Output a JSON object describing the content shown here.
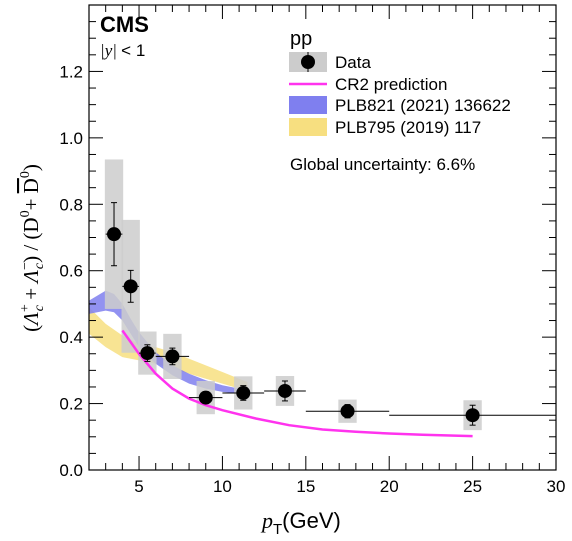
{
  "chart_data": {
    "type": "scatter",
    "experiment": "CMS",
    "rapidity_cut": {
      "var": "y",
      "cut": "< 1"
    },
    "legend_header": "pp",
    "global_uncertainty": "Global uncertainty: 6.6%",
    "xlabel": {
      "var": "p",
      "sub": "T",
      "unit": "(GeV)"
    },
    "ylabel": {
      "open": "(",
      "lam": "Λ",
      "c": "c",
      "plus_sup": "+",
      "mid": " + ",
      "minus_sup": "−",
      "close": ") / (D",
      "zero": "0",
      "plus2": "+ ",
      "dbar": "D",
      "zero2": "0",
      "end": ")"
    },
    "xlim": [
      2,
      30
    ],
    "ylim": [
      0,
      1.4
    ],
    "xticks": [
      5,
      10,
      15,
      20,
      25,
      30
    ],
    "yticks": [
      0.0,
      0.2,
      0.4,
      0.6,
      0.8,
      1.0,
      1.2
    ],
    "ytick_labels": [
      "0.0",
      "0.2",
      "0.4",
      "0.6",
      "0.8",
      "1.0",
      "1.2"
    ],
    "legend": [
      {
        "key": "data",
        "label": "Data"
      },
      {
        "key": "cr2",
        "label": "CR2 prediction"
      },
      {
        "key": "plb821",
        "label": "PLB821 (2021) 136622"
      },
      {
        "key": "plb795",
        "label": "PLB795 (2019) 117"
      }
    ],
    "colors": {
      "data": "#000000",
      "syst": "#cccccc",
      "cr2": "#ff33ee",
      "plb821": "#7f7fef",
      "plb795": "#f7df80"
    },
    "data_points": [
      {
        "x": 3.5,
        "y": 0.71,
        "xlo": 3.0,
        "xhi": 4.0,
        "stat": 0.095,
        "syst": 0.225
      },
      {
        "x": 4.5,
        "y": 0.553,
        "xlo": 4.0,
        "xhi": 5.0,
        "stat": 0.048,
        "syst": 0.2
      },
      {
        "x": 5.5,
        "y": 0.352,
        "xlo": 5.0,
        "xhi": 6.0,
        "stat": 0.025,
        "syst": 0.065
      },
      {
        "x": 7.0,
        "y": 0.342,
        "xlo": 6.0,
        "xhi": 8.0,
        "stat": 0.025,
        "syst": 0.068
      },
      {
        "x": 9.0,
        "y": 0.218,
        "xlo": 8.0,
        "xhi": 10.0,
        "stat": 0.018,
        "syst": 0.05
      },
      {
        "x": 11.25,
        "y": 0.232,
        "xlo": 10.0,
        "xhi": 12.5,
        "stat": 0.022,
        "syst": 0.05
      },
      {
        "x": 13.75,
        "y": 0.238,
        "xlo": 12.5,
        "xhi": 15.0,
        "stat": 0.03,
        "syst": 0.045
      },
      {
        "x": 17.5,
        "y": 0.177,
        "xlo": 15.0,
        "xhi": 20.0,
        "stat": 0.02,
        "syst": 0.035
      },
      {
        "x": 25.0,
        "y": 0.165,
        "xlo": 20.0,
        "xhi": 30.0,
        "stat": 0.03,
        "syst": 0.045
      }
    ],
    "cr2_curve": {
      "x": [
        4.0,
        5.0,
        6.0,
        7.0,
        8.0,
        9.0,
        10.0,
        12.0,
        14.0,
        16.0,
        18.0,
        20.0,
        22.0,
        25.0
      ],
      "y": [
        0.42,
        0.35,
        0.29,
        0.245,
        0.215,
        0.195,
        0.18,
        0.155,
        0.135,
        0.122,
        0.115,
        0.11,
        0.106,
        0.102
      ]
    },
    "plb821_band": {
      "x": [
        2.0,
        3.0,
        3.5,
        4.0,
        4.5,
        5.0,
        6.0,
        7.0,
        8.0,
        9.0,
        10.0,
        11.0
      ],
      "ylo": [
        0.47,
        0.48,
        0.475,
        0.45,
        0.41,
        0.37,
        0.32,
        0.285,
        0.26,
        0.245,
        0.235,
        0.23
      ],
      "yhi": [
        0.51,
        0.54,
        0.53,
        0.5,
        0.455,
        0.415,
        0.355,
        0.315,
        0.29,
        0.27,
        0.255,
        0.245
      ]
    },
    "plb795_band": {
      "x": [
        2.0,
        3.0,
        4.0,
        5.0,
        6.0,
        7.0,
        8.0,
        9.0,
        10.0,
        11.0,
        11.5
      ],
      "ylo": [
        0.41,
        0.37,
        0.34,
        0.33,
        0.32,
        0.305,
        0.29,
        0.275,
        0.26,
        0.245,
        0.24
      ],
      "yhi": [
        0.49,
        0.44,
        0.405,
        0.38,
        0.37,
        0.355,
        0.335,
        0.315,
        0.295,
        0.275,
        0.265
      ]
    }
  }
}
